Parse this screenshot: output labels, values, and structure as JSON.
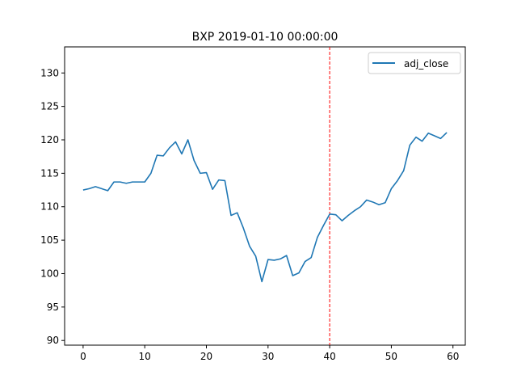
{
  "chart_data": {
    "type": "line",
    "title": "BXP 2019-01-10 00:00:00",
    "xlabel": "",
    "ylabel": "",
    "xlim": [
      -3,
      62
    ],
    "ylim": [
      89.3,
      133.9
    ],
    "xticks": [
      0,
      10,
      20,
      30,
      40,
      50,
      60
    ],
    "yticks": [
      90,
      95,
      100,
      105,
      110,
      115,
      120,
      125,
      130
    ],
    "grid": false,
    "legend_position": "top-right",
    "series": [
      {
        "name": "adj_close",
        "color": "#1f77b4",
        "x": [
          0,
          1,
          2,
          3,
          4,
          5,
          6,
          7,
          8,
          9,
          10,
          11,
          12,
          13,
          14,
          15,
          16,
          17,
          18,
          19,
          20,
          21,
          22,
          23,
          24,
          25,
          26,
          27,
          28,
          29,
          30,
          31,
          32,
          33,
          34,
          35,
          36,
          37,
          38,
          39,
          40,
          41,
          42,
          43,
          44,
          45,
          46,
          47,
          48,
          49,
          50,
          51,
          52,
          53,
          54,
          55,
          56,
          57,
          58,
          59
        ],
        "values": [
          112.5,
          112.7,
          113.0,
          112.7,
          112.4,
          113.7,
          113.7,
          113.5,
          113.7,
          113.7,
          113.7,
          115.0,
          117.7,
          117.6,
          118.8,
          119.7,
          117.9,
          120.0,
          116.9,
          115.0,
          115.1,
          112.6,
          114.0,
          113.9,
          108.7,
          109.1,
          106.8,
          104.1,
          102.6,
          98.8,
          102.1,
          102.0,
          102.2,
          102.7,
          99.7,
          100.1,
          101.8,
          102.4,
          105.4,
          107.2,
          108.9,
          108.8,
          107.9,
          108.7,
          109.4,
          110.0,
          111.0,
          110.7,
          110.3,
          110.6,
          112.7,
          113.9,
          115.4,
          119.2,
          120.4,
          119.8,
          121.0,
          120.6,
          120.2,
          121.1
        ]
      }
    ],
    "annotations": [
      {
        "type": "vline",
        "x": 40,
        "color": "#ff0000",
        "style": "dashed"
      }
    ]
  }
}
